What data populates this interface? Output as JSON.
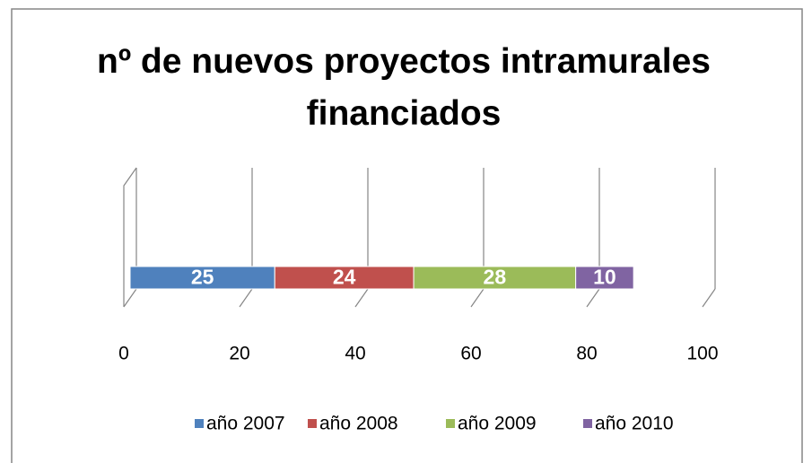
{
  "chart_data": {
    "type": "stacked_bar_horizontal",
    "title": "nº de nuevos proyectos intramurales financiados",
    "categories": [
      null
    ],
    "series": [
      {
        "name": "año 2007",
        "color": "#4f81bd",
        "values": [
          25
        ]
      },
      {
        "name": "año 2008",
        "color": "#c0504d",
        "values": [
          24
        ]
      },
      {
        "name": "año 2009",
        "color": "#9bbb59",
        "values": [
          28
        ]
      },
      {
        "name": "año 2010",
        "color": "#8064a2",
        "values": [
          10
        ]
      }
    ],
    "xlim": [
      0,
      100
    ],
    "xticks": [
      0,
      20,
      40,
      60,
      80,
      100
    ],
    "grid": true,
    "legend": "bottom"
  }
}
